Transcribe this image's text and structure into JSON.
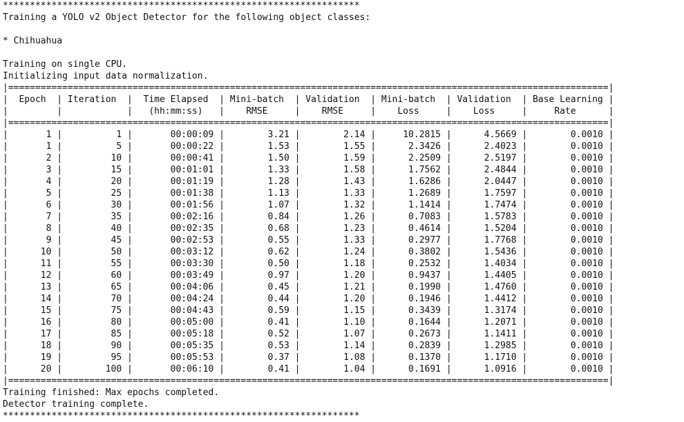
{
  "console": {
    "stars": "******************************************************************",
    "title": "Training a YOLO v2 Object Detector for the following object classes:",
    "classes": [
      "* Chihuahua"
    ],
    "status_lines": [
      "Training on single CPU.",
      "Initializing input data normalization."
    ],
    "table": {
      "headers": [
        [
          "Epoch",
          ""
        ],
        [
          "Iteration",
          ""
        ],
        [
          "Time Elapsed",
          "(hh:mm:ss)"
        ],
        [
          "Mini-batch",
          "RMSE"
        ],
        [
          "Validation",
          "RMSE"
        ],
        [
          "Mini-batch",
          "Loss"
        ],
        [
          "Validation",
          "Loss"
        ],
        [
          "Base Learning",
          "Rate"
        ]
      ],
      "rows": [
        [
          "1",
          "1",
          "00:00:09",
          "3.21",
          "2.14",
          "10.2815",
          "4.5669",
          "0.0010"
        ],
        [
          "1",
          "5",
          "00:00:22",
          "1.53",
          "1.55",
          "2.3426",
          "2.4023",
          "0.0010"
        ],
        [
          "2",
          "10",
          "00:00:41",
          "1.50",
          "1.59",
          "2.2509",
          "2.5197",
          "0.0010"
        ],
        [
          "3",
          "15",
          "00:01:01",
          "1.33",
          "1.58",
          "1.7562",
          "2.4844",
          "0.0010"
        ],
        [
          "4",
          "20",
          "00:01:19",
          "1.28",
          "1.43",
          "1.6286",
          "2.0447",
          "0.0010"
        ],
        [
          "5",
          "25",
          "00:01:38",
          "1.13",
          "1.33",
          "1.2689",
          "1.7597",
          "0.0010"
        ],
        [
          "6",
          "30",
          "00:01:56",
          "1.07",
          "1.32",
          "1.1414",
          "1.7474",
          "0.0010"
        ],
        [
          "7",
          "35",
          "00:02:16",
          "0.84",
          "1.26",
          "0.7083",
          "1.5783",
          "0.0010"
        ],
        [
          "8",
          "40",
          "00:02:35",
          "0.68",
          "1.23",
          "0.4614",
          "1.5204",
          "0.0010"
        ],
        [
          "9",
          "45",
          "00:02:53",
          "0.55",
          "1.33",
          "0.2977",
          "1.7768",
          "0.0010"
        ],
        [
          "10",
          "50",
          "00:03:12",
          "0.62",
          "1.24",
          "0.3802",
          "1.5436",
          "0.0010"
        ],
        [
          "11",
          "55",
          "00:03:30",
          "0.50",
          "1.18",
          "0.2532",
          "1.4034",
          "0.0010"
        ],
        [
          "12",
          "60",
          "00:03:49",
          "0.97",
          "1.20",
          "0.9437",
          "1.4405",
          "0.0010"
        ],
        [
          "13",
          "65",
          "00:04:06",
          "0.45",
          "1.21",
          "0.1990",
          "1.4760",
          "0.0010"
        ],
        [
          "14",
          "70",
          "00:04:24",
          "0.44",
          "1.20",
          "0.1946",
          "1.4412",
          "0.0010"
        ],
        [
          "15",
          "75",
          "00:04:43",
          "0.59",
          "1.15",
          "0.3439",
          "1.3174",
          "0.0010"
        ],
        [
          "16",
          "80",
          "00:05:00",
          "0.41",
          "1.10",
          "0.1644",
          "1.2071",
          "0.0010"
        ],
        [
          "17",
          "85",
          "00:05:18",
          "0.52",
          "1.07",
          "0.2673",
          "1.1411",
          "0.0010"
        ],
        [
          "18",
          "90",
          "00:05:35",
          "0.53",
          "1.14",
          "0.2839",
          "1.2985",
          "0.0010"
        ],
        [
          "19",
          "95",
          "00:05:53",
          "0.37",
          "1.08",
          "0.1370",
          "1.1710",
          "0.0010"
        ],
        [
          "20",
          "100",
          "00:06:10",
          "0.41",
          "1.04",
          "0.1691",
          "1.0916",
          "0.0010"
        ]
      ]
    },
    "footer_lines": [
      "Training finished: Max epochs completed.",
      "Detector training complete."
    ]
  }
}
